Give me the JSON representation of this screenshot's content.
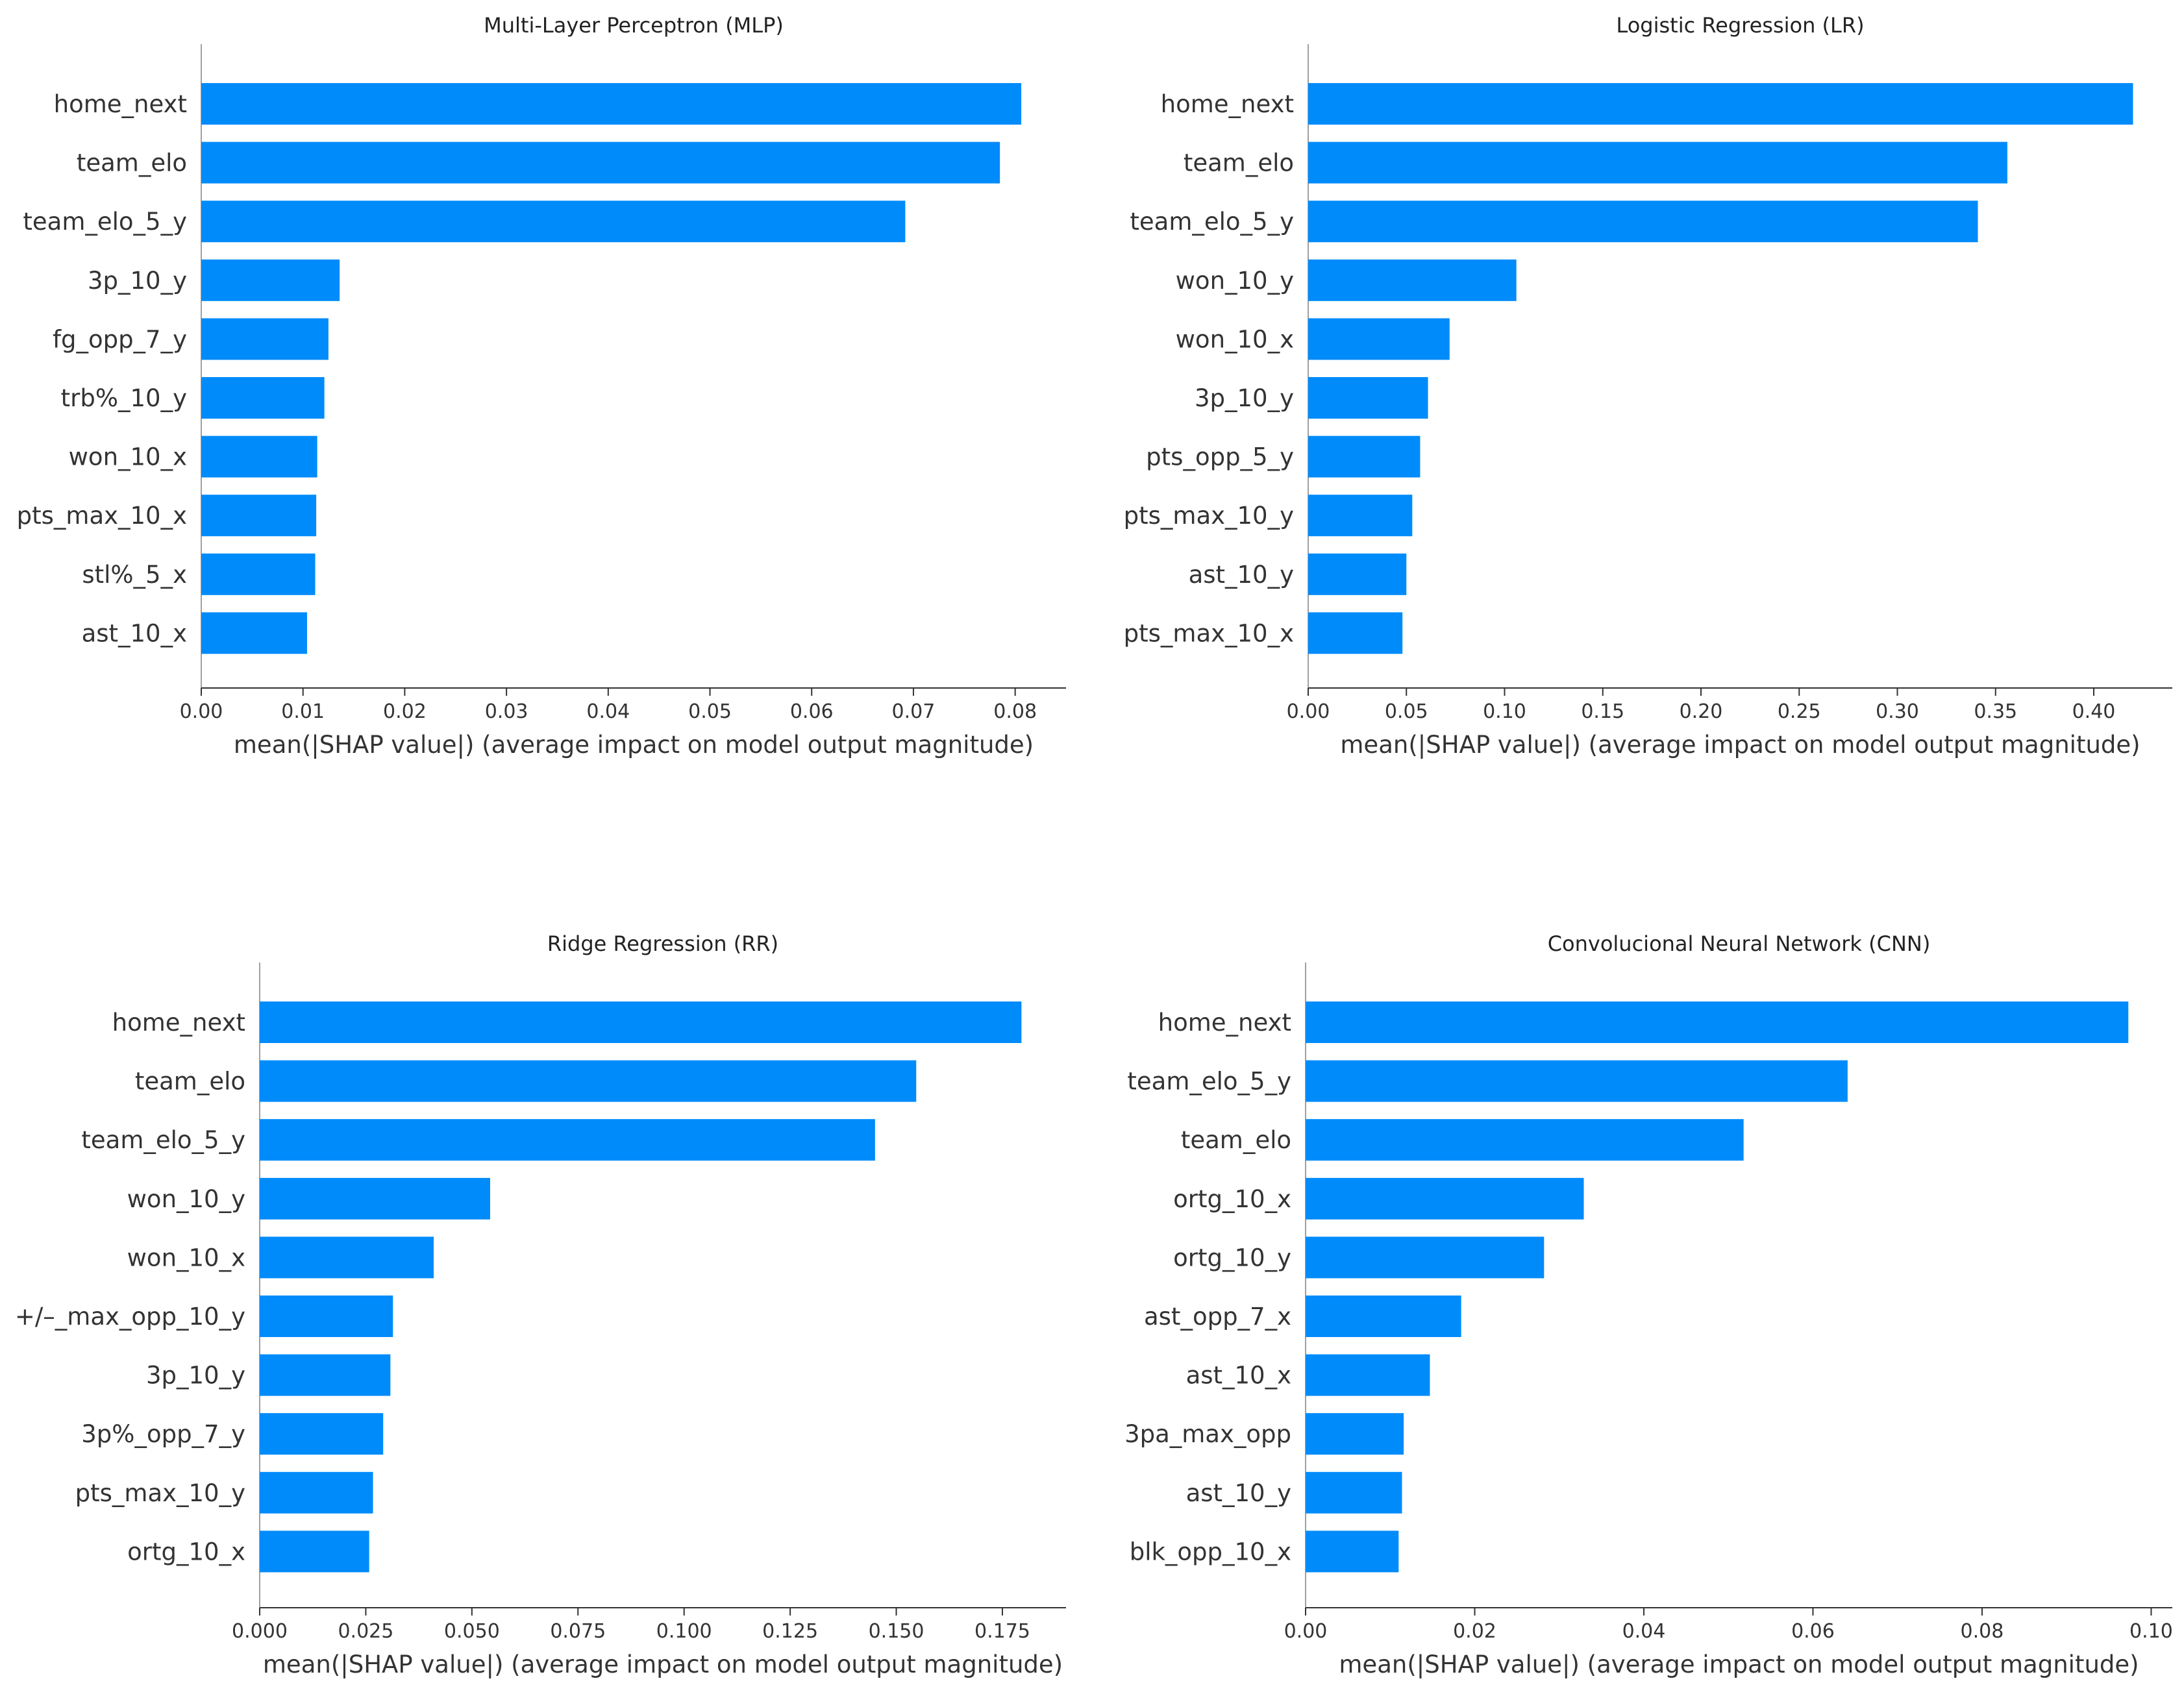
{
  "chart_data": [
    {
      "type": "bar",
      "orientation": "horizontal",
      "title": "Multi-Layer Perceptron (MLP)",
      "categories": [
        "home_next",
        "team_elo",
        "team_elo_5_y",
        "3p_10_y",
        "fg_opp_7_y",
        "trb%_10_y",
        "won_10_x",
        "pts_max_10_x",
        "stl%_5_x",
        "ast_10_x"
      ],
      "values": [
        0.0806,
        0.0785,
        0.0692,
        0.0136,
        0.0125,
        0.0121,
        0.0114,
        0.0113,
        0.0112,
        0.0104
      ],
      "xlabel": "mean(|SHAP value|) (average impact on model output magnitude)",
      "xlim": [
        0,
        0.085
      ],
      "xticks": [
        0.0,
        0.01,
        0.02,
        0.03,
        0.04,
        0.05,
        0.06,
        0.07,
        0.08
      ],
      "xtick_labels": [
        "0.00",
        "0.01",
        "0.02",
        "0.03",
        "0.04",
        "0.05",
        "0.06",
        "0.07",
        "0.08"
      ],
      "bar_color": "#008bfb"
    },
    {
      "type": "bar",
      "orientation": "horizontal",
      "title": "Logistic Regression (LR)",
      "categories": [
        "home_next",
        "team_elo",
        "team_elo_5_y",
        "won_10_y",
        "won_10_x",
        "3p_10_y",
        "pts_opp_5_y",
        "pts_max_10_y",
        "ast_10_y",
        "pts_max_10_x"
      ],
      "values": [
        0.42,
        0.356,
        0.341,
        0.106,
        0.072,
        0.061,
        0.057,
        0.053,
        0.05,
        0.048
      ],
      "xlabel": "mean(|SHAP value|) (average impact on model output magnitude)",
      "xlim": [
        0,
        0.44
      ],
      "xticks": [
        0.0,
        0.05,
        0.1,
        0.15,
        0.2,
        0.25,
        0.3,
        0.35,
        0.4
      ],
      "xtick_labels": [
        "0.00",
        "0.05",
        "0.10",
        "0.15",
        "0.20",
        "0.25",
        "0.30",
        "0.35",
        "0.40"
      ],
      "bar_color": "#008bfb"
    },
    {
      "type": "bar",
      "orientation": "horizontal",
      "title": "Ridge Regression (RR)",
      "categories": [
        "home_next",
        "team_elo",
        "team_elo_5_y",
        "won_10_y",
        "won_10_x",
        "+/–_max_opp_10_y",
        "3p_10_y",
        "3p%_opp_7_y",
        "pts_max_10_y",
        "ortg_10_x"
      ],
      "values": [
        0.1795,
        0.1547,
        0.145,
        0.0543,
        0.041,
        0.0314,
        0.0308,
        0.0291,
        0.0267,
        0.0258
      ],
      "xlabel": "mean(|SHAP value|) (average impact on model output magnitude)",
      "xlim": [
        0,
        0.19
      ],
      "xticks": [
        0.0,
        0.025,
        0.05,
        0.075,
        0.1,
        0.125,
        0.15,
        0.175
      ],
      "xtick_labels": [
        "0.000",
        "0.025",
        "0.050",
        "0.075",
        "0.100",
        "0.125",
        "0.150",
        "0.175"
      ],
      "bar_color": "#008bfb"
    },
    {
      "type": "bar",
      "orientation": "horizontal",
      "title": "Convolucional Neural Network (CNN)",
      "categories": [
        "home_next",
        "team_elo_5_y",
        "team_elo",
        "ortg_10_x",
        "ortg_10_y",
        "ast_opp_7_x",
        "ast_10_x",
        "3pa_max_opp",
        "ast_10_y",
        "blk_opp_10_x"
      ],
      "values": [
        0.0973,
        0.0641,
        0.0518,
        0.0329,
        0.0282,
        0.0184,
        0.0147,
        0.0116,
        0.0114,
        0.011
      ],
      "xlabel": "mean(|SHAP value|) (average impact on model output magnitude)",
      "xlim": [
        0,
        0.1025
      ],
      "xticks": [
        0.0,
        0.02,
        0.04,
        0.06,
        0.08,
        0.1
      ],
      "xtick_labels": [
        "0.00",
        "0.02",
        "0.04",
        "0.06",
        "0.08",
        "0.10"
      ],
      "bar_color": "#008bfb"
    }
  ]
}
